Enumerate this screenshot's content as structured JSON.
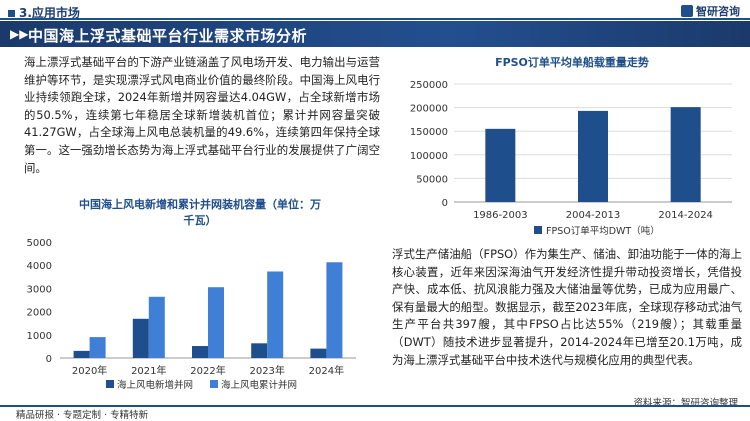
{
  "header": {
    "section": "3.应用市场",
    "brand": "智研咨询",
    "title": "中国海上浮式基础平台行业需求市场分析"
  },
  "text": {
    "paragraph1": "海上漂浮式基础平台的下游产业链涵盖了风电场开发、电力输出与运营维护等环节，是实现漂浮式风电商业价值的最终阶段。中国海上风电行业持续领跑全球，2024年新增并网容量达4.04GW，占全球新增市场的50.5%，连续第七年稳居全球新增装机首位；累计并网容量突破41.27GW，占全球海上风电总装机量的49.6%，连续第四年保持全球第一。这一强劲增长态势为海上浮式基础平台行业的发展提供了广阔空间。",
    "paragraph2": "浮式生产储油船（FPSO）作为集生产、储油、卸油功能于一体的海上核心装置，近年来因深海油气开发经济性提升带动投资增长，凭借投产快、成本低、抗风浪能力强及大储油量等优势，已成为应用最广、保有量最大的船型。数据显示，截至2023年底，全球现存移动式油气生产平台共397艘，其中FPSO占比达55%（219艘）；其载重量（DWT）随技术进步显著提升，2014-2024年已增至20.1万吨，成为海上漂浮式基础平台中技术迭代与规模化应用的典型代表。"
  },
  "footer": {
    "left": "精品研报 · 专题定制 · 专精特新",
    "source": "资料来源：智研咨询整理"
  },
  "chart_data": [
    {
      "type": "bar",
      "title": "中国海上风电新增和累计并网装机容量（单位：万千瓦）",
      "categories": [
        "2020年",
        "2021年",
        "2022年",
        "2023年",
        "2024年"
      ],
      "series": [
        {
          "name": "海上风电新增并网",
          "values": [
            307,
            1690,
            516,
            633,
            404
          ],
          "color": "#1f4e8c"
        },
        {
          "name": "海上风电累计并网",
          "values": [
            900,
            2639,
            3051,
            3729,
            4127
          ],
          "color": "#3f7fd6"
        }
      ],
      "ylim": [
        0,
        5000
      ],
      "yticks": [
        0,
        1000,
        2000,
        3000,
        4000,
        5000
      ],
      "legend": "bottom",
      "grid": false
    },
    {
      "type": "bar",
      "title": "FPSO订单平均单船载重量走势",
      "categories": [
        "1986-2003",
        "2004-2013",
        "2014-2024"
      ],
      "series": [
        {
          "name": "FPSO订单平均DWT（吨）",
          "values": [
            155000,
            193000,
            201000
          ],
          "color": "#1f4e8c"
        }
      ],
      "ylim": [
        0,
        250000
      ],
      "yticks": [
        0,
        50000,
        100000,
        150000,
        200000,
        250000
      ],
      "legend": "bottom",
      "grid": true
    }
  ]
}
